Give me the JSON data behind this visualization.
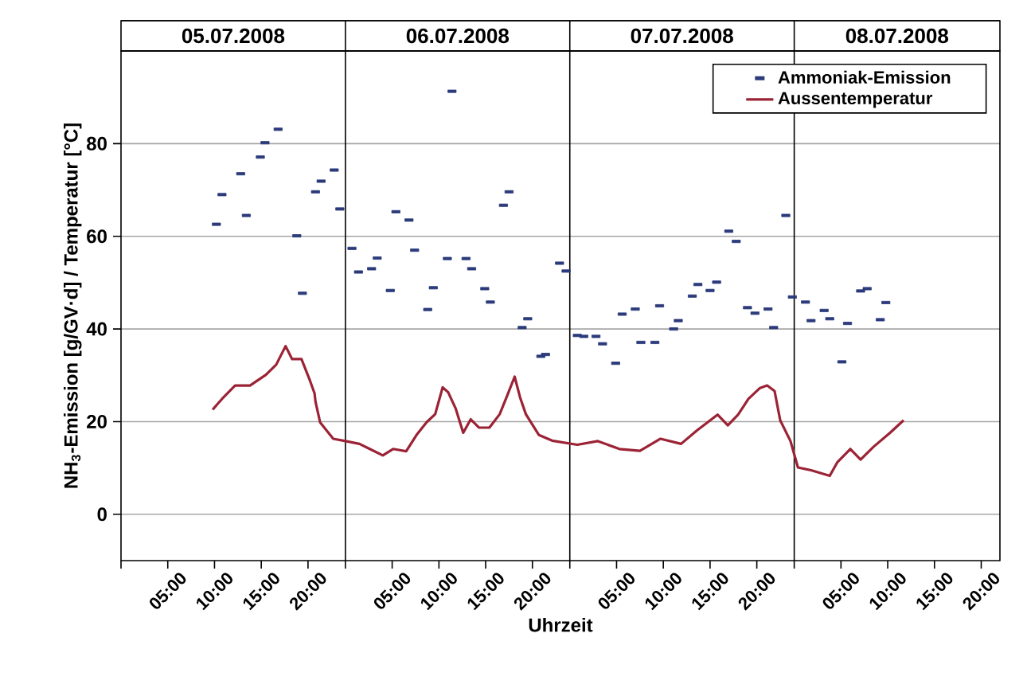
{
  "chart_data": {
    "type": "scatter",
    "xlabel": "Uhrzeit",
    "ylabel": "NH$_{3}$-Emission [g/GV·d] / Temperatur [°C]",
    "xlim": [
      "2008-07-05T00:00",
      "2008-07-08T22:00"
    ],
    "ylim": [
      -10,
      100
    ],
    "yticks": [
      0,
      20,
      40,
      60,
      80
    ],
    "xticks": [
      {
        "value": "2008-07-05T00:00",
        "label": null
      },
      {
        "value": "2008-07-05T05:00",
        "label": "05:00"
      },
      {
        "value": "2008-07-05T10:00",
        "label": "10:00"
      },
      {
        "value": "2008-07-05T15:00",
        "label": "15:00"
      },
      {
        "value": "2008-07-05T20:00",
        "label": "20:00"
      },
      {
        "value": "2008-07-06T00:00",
        "label": null
      },
      {
        "value": "2008-07-06T05:00",
        "label": "05:00"
      },
      {
        "value": "2008-07-06T10:00",
        "label": "10:00"
      },
      {
        "value": "2008-07-06T15:00",
        "label": "15:00"
      },
      {
        "value": "2008-07-06T20:00",
        "label": "20:00"
      },
      {
        "value": "2008-07-07T00:00",
        "label": null
      },
      {
        "value": "2008-07-07T05:00",
        "label": "05:00"
      },
      {
        "value": "2008-07-07T10:00",
        "label": "10:00"
      },
      {
        "value": "2008-07-07T15:00",
        "label": "15:00"
      },
      {
        "value": "2008-07-07T20:00",
        "label": "20:00"
      },
      {
        "value": "2008-07-08T00:00",
        "label": null
      },
      {
        "value": "2008-07-08T05:00",
        "label": "05:00"
      },
      {
        "value": "2008-07-08T10:00",
        "label": "10:00"
      },
      {
        "value": "2008-07-08T15:00",
        "label": "15:00"
      },
      {
        "value": "2008-07-08T20:00",
        "label": "20:00"
      }
    ],
    "x2lim": [
      "2008-07-05T00:00",
      "2008-07-08T22:00"
    ],
    "x2ticks": [
      {
        "value": "2008-07-05T12:00",
        "label": "05.07.2008"
      },
      {
        "value": "2008-07-06T12:00",
        "label": "06.07.2008"
      },
      {
        "value": "2008-07-07T12:00",
        "label": "07.07.2008"
      },
      {
        "value": "2008-07-08T11:00",
        "label": "08.07.2008"
      }
    ],
    "ref_lines": [
      {
        "axis": "x",
        "value": "2008-07-06T00:00",
        "color": "#000000"
      },
      {
        "axis": "x",
        "value": "2008-07-07T00:00",
        "color": "#000000"
      },
      {
        "axis": "x",
        "value": "2008-07-08T00:00",
        "color": "#000000"
      }
    ],
    "grid": "y",
    "legend": "top right",
    "series": [
      {
        "name": "Ammoniak-Emission",
        "color": "#2b3a7a",
        "x": [
          "2008-07-05T10:12",
          "2008-07-05T10:48",
          "2008-07-05T12:48",
          "2008-07-05T13:24",
          "2008-07-05T14:54",
          "2008-07-05T15:24",
          "2008-07-05T16:48",
          "2008-07-05T18:48",
          "2008-07-05T19:24",
          "2008-07-05T20:48",
          "2008-07-05T21:24",
          "2008-07-05T22:48",
          "2008-07-05T23:24",
          "2008-07-06T00:42",
          "2008-07-06T01:24",
          "2008-07-06T02:48",
          "2008-07-06T03:24",
          "2008-07-06T04:48",
          "2008-07-06T05:24",
          "2008-07-06T06:48",
          "2008-07-06T07:24",
          "2008-07-06T08:48",
          "2008-07-06T09:24",
          "2008-07-06T10:54",
          "2008-07-06T11:24",
          "2008-07-06T12:54",
          "2008-07-06T13:30",
          "2008-07-06T14:54",
          "2008-07-06T15:30",
          "2008-07-06T16:54",
          "2008-07-06T17:30",
          "2008-07-06T18:54",
          "2008-07-06T19:30",
          "2008-07-06T20:54",
          "2008-07-06T21:24",
          "2008-07-06T22:54",
          "2008-07-06T23:36",
          "2008-07-07T00:48",
          "2008-07-07T01:30",
          "2008-07-07T02:48",
          "2008-07-07T03:30",
          "2008-07-07T04:54",
          "2008-07-07T05:36",
          "2008-07-07T07:00",
          "2008-07-07T07:36",
          "2008-07-07T09:06",
          "2008-07-07T09:36",
          "2008-07-07T11:06",
          "2008-07-07T11:36",
          "2008-07-07T13:06",
          "2008-07-07T13:42",
          "2008-07-07T15:00",
          "2008-07-07T15:42",
          "2008-07-07T17:00",
          "2008-07-07T17:48",
          "2008-07-07T19:00",
          "2008-07-07T19:48",
          "2008-07-07T21:12",
          "2008-07-07T21:48",
          "2008-07-07T23:06",
          "2008-07-07T23:48",
          "2008-07-08T01:12",
          "2008-07-08T01:48",
          "2008-07-08T03:12",
          "2008-07-08T03:48",
          "2008-07-08T05:06",
          "2008-07-08T05:42",
          "2008-07-08T07:06",
          "2008-07-08T07:48",
          "2008-07-08T09:12",
          "2008-07-08T09:48"
        ],
        "values": [
          62.6,
          69.0,
          73.5,
          64.5,
          77.1,
          80.2,
          83.1,
          60.1,
          47.7,
          69.6,
          71.9,
          74.3,
          65.9,
          57.4,
          52.3,
          53.0,
          55.3,
          48.3,
          65.3,
          63.5,
          57.0,
          44.2,
          48.9,
          55.2,
          91.3,
          55.2,
          53.0,
          48.7,
          45.8,
          66.7,
          69.6,
          40.3,
          42.2,
          34.1,
          34.5,
          54.2,
          52.5,
          38.6,
          38.4,
          38.4,
          36.8,
          32.6,
          43.2,
          44.3,
          37.1,
          37.1,
          45.0,
          40.0,
          41.8,
          47.1,
          49.6,
          48.3,
          50.1,
          61.1,
          58.9,
          44.6,
          43.4,
          44.3,
          40.3,
          64.5,
          46.9,
          45.8,
          41.8,
          44.0,
          42.2,
          32.9,
          41.2,
          48.2,
          48.7,
          42.0,
          45.7
        ]
      },
      {
        "name": "Aussentemperatur",
        "type": "line",
        "color": "#9b2335",
        "x": [
          "2008-07-05T09:48",
          "2008-07-05T10:48",
          "2008-07-05T12:12",
          "2008-07-05T13:48",
          "2008-07-05T15:30",
          "2008-07-05T16:36",
          "2008-07-05T17:36",
          "2008-07-05T18:18",
          "2008-07-05T19:18",
          "2008-07-05T20:12",
          "2008-07-05T20:42",
          "2008-07-05T20:48",
          "2008-07-05T21:18",
          "2008-07-05T22:42",
          "2008-07-06T00:00",
          "2008-07-06T01:30",
          "2008-07-06T02:36",
          "2008-07-06T04:00",
          "2008-07-06T05:06",
          "2008-07-06T06:30",
          "2008-07-06T07:36",
          "2008-07-06T08:42",
          "2008-07-06T09:36",
          "2008-07-06T10:24",
          "2008-07-06T11:00",
          "2008-07-06T11:48",
          "2008-07-06T12:36",
          "2008-07-06T13:24",
          "2008-07-06T14:18",
          "2008-07-06T15:24",
          "2008-07-06T16:30",
          "2008-07-06T17:18",
          "2008-07-06T18:06",
          "2008-07-06T18:42",
          "2008-07-06T19:18",
          "2008-07-06T20:42",
          "2008-07-06T22:06",
          "2008-07-07T00:48",
          "2008-07-07T03:00",
          "2008-07-07T05:18",
          "2008-07-07T07:30",
          "2008-07-07T09:42",
          "2008-07-07T11:54",
          "2008-07-07T13:36",
          "2008-07-07T15:48",
          "2008-07-07T16:54",
          "2008-07-07T18:00",
          "2008-07-07T19:06",
          "2008-07-07T20:18",
          "2008-07-07T21:06",
          "2008-07-07T21:54",
          "2008-07-07T22:30",
          "2008-07-07T23:36",
          "2008-07-08T00:24",
          "2008-07-08T01:48",
          "2008-07-08T03:48",
          "2008-07-08T04:36",
          "2008-07-08T06:00",
          "2008-07-08T07:06",
          "2008-07-08T08:30",
          "2008-07-08T10:12",
          "2008-07-08T11:42"
        ],
        "values": [
          22.6,
          24.9,
          27.8,
          27.8,
          30.1,
          32.3,
          36.3,
          33.5,
          33.5,
          28.9,
          26.1,
          24.3,
          19.8,
          16.3,
          15.8,
          15.2,
          14.1,
          12.7,
          14.1,
          13.6,
          17.1,
          19.9,
          21.6,
          27.4,
          26.3,
          22.8,
          17.6,
          20.5,
          18.7,
          18.7,
          21.6,
          25.6,
          29.7,
          25.1,
          21.6,
          17.1,
          15.9,
          15.0,
          15.8,
          14.1,
          13.7,
          16.3,
          15.2,
          18.1,
          21.5,
          19.2,
          21.5,
          24.9,
          27.2,
          27.8,
          26.6,
          20.3,
          15.8,
          10.1,
          9.5,
          8.3,
          11.2,
          14.1,
          11.8,
          14.6,
          17.5,
          20.3
        ]
      }
    ]
  }
}
